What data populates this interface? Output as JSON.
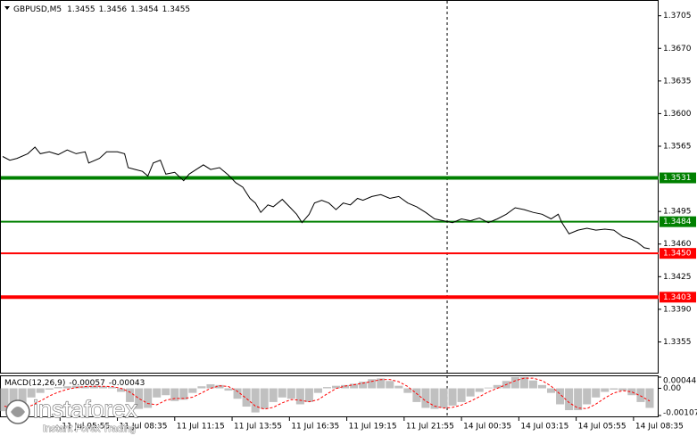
{
  "chart_data": [
    {
      "type": "line",
      "title": "GBPUSD,M5",
      "ohlc": [
        1.3455,
        1.3456,
        1.3454,
        1.3455
      ],
      "color": "#000000",
      "x": [
        0,
        4,
        8,
        14,
        18,
        21,
        26,
        31,
        36,
        41,
        46,
        48,
        54,
        58,
        64,
        68,
        70,
        74,
        78,
        81,
        84,
        88,
        91,
        96,
        101,
        104,
        108,
        112,
        116,
        121,
        126,
        130,
        134,
        138,
        141,
        144,
        148,
        151,
        156,
        160,
        164,
        167,
        171,
        174,
        178,
        182,
        186,
        190,
        194,
        198,
        201,
        206,
        211,
        216,
        221,
        226,
        231,
        236,
        241,
        246,
        251,
        256,
        261,
        266,
        271,
        276,
        281,
        286,
        291,
        296,
        301,
        306,
        310,
        312,
        316,
        321,
        326,
        331,
        336,
        341,
        346,
        351,
        354,
        358,
        361
      ],
      "values": [
        1.3554,
        1.355,
        1.3552,
        1.3557,
        1.3564,
        1.3557,
        1.3559,
        1.3556,
        1.3561,
        1.3557,
        1.3559,
        1.3547,
        1.3552,
        1.3559,
        1.3559,
        1.3557,
        1.3542,
        1.354,
        1.3538,
        1.3533,
        1.3547,
        1.355,
        1.3535,
        1.3537,
        1.3528,
        1.3535,
        1.354,
        1.3545,
        1.354,
        1.3542,
        1.3534,
        1.3526,
        1.3521,
        1.3509,
        1.3504,
        1.3494,
        1.3502,
        1.35,
        1.3508,
        1.35,
        1.3492,
        1.3483,
        1.3492,
        1.3504,
        1.3507,
        1.3504,
        1.3497,
        1.3504,
        1.3502,
        1.3509,
        1.3507,
        1.3511,
        1.3513,
        1.3509,
        1.3511,
        1.3504,
        1.35,
        1.3494,
        1.3487,
        1.3485,
        1.3483,
        1.3487,
        1.3485,
        1.3488,
        1.3483,
        1.3487,
        1.3492,
        1.3499,
        1.3497,
        1.3494,
        1.3492,
        1.3487,
        1.3492,
        1.3483,
        1.3471,
        1.3475,
        1.3477,
        1.3475,
        1.3476,
        1.3475,
        1.3468,
        1.3465,
        1.3462,
        1.3456,
        1.3455
      ],
      "xlim": [
        -1.5,
        366
      ],
      "xticks": [
        {
          "value": 32,
          "label": "11 Jul 05:55"
        },
        {
          "value": 64,
          "label": "11 Jul 08:35"
        },
        {
          "value": 96,
          "label": "11 Jul 11:15"
        },
        {
          "value": 128,
          "label": "11 Jul 13:55"
        },
        {
          "value": 160,
          "label": "11 Jul 16:35"
        },
        {
          "value": 192,
          "label": "11 Jul 19:15"
        },
        {
          "value": 224,
          "label": "11 Jul 21:55"
        },
        {
          "value": 256,
          "label": "14 Jul 00:35"
        },
        {
          "value": 288,
          "label": "14 Jul 03:15"
        },
        {
          "value": 320,
          "label": "14 Jul 05:55"
        },
        {
          "value": 352,
          "label": "14 Jul 08:35"
        }
      ],
      "ylim": [
        1.3321,
        1.372
      ],
      "yticks": [
        1.3705,
        {
          "value": 1.367,
          "label": "1.3670"
        },
        1.3635,
        {
          "value": 1.36,
          "label": "1.3600"
        },
        1.3565,
        1.3495,
        {
          "value": 1.346,
          "label": "1.3460"
        },
        1.3425,
        {
          "value": 1.339,
          "label": "1.3390"
        },
        1.3355
      ],
      "levels": [
        {
          "value": 1.3531,
          "color": "#008000",
          "style": "thick"
        },
        {
          "value": 1.3484,
          "color": "#008000",
          "style": "thin"
        },
        {
          "value": 1.345,
          "label": "1.3450",
          "color": "#ff0000",
          "style": "thin"
        },
        {
          "value": 1.3403,
          "color": "#ff0000",
          "style": "thick"
        }
      ],
      "cursor_x": 248
    },
    {
      "type": "macd",
      "title": "MACD(12,26,9)",
      "readout": [
        -0.00057,
        -0.00043
      ],
      "x": [
        1,
        6,
        11,
        16,
        21,
        26,
        31,
        36,
        41,
        46,
        51,
        56,
        61,
        66,
        71,
        76,
        81,
        86,
        91,
        96,
        101,
        106,
        111,
        116,
        121,
        126,
        131,
        136,
        141,
        146,
        151,
        156,
        161,
        166,
        171,
        176,
        181,
        186,
        191,
        196,
        201,
        206,
        211,
        216,
        221,
        226,
        231,
        236,
        241,
        246,
        251,
        256,
        261,
        266,
        271,
        276,
        281,
        286,
        291,
        296,
        301,
        306,
        311,
        316,
        321,
        326,
        331,
        336,
        341,
        346,
        351,
        356,
        361
      ],
      "histogram": [
        -0.0009,
        -0.00099,
        -0.00068,
        -0.00036,
        -0.00018,
        -5e-05,
        5e-05,
        8e-05,
        0.0001,
        8e-05,
        0.0001,
        8e-05,
        5e-05,
        -0.00014,
        -0.00054,
        -0.00081,
        -0.00077,
        -0.00036,
        -0.00027,
        -0.0005,
        -0.00045,
        -0.00018,
        8e-05,
        0.00016,
        0.00013,
        -9e-05,
        -0.00041,
        -0.00072,
        -0.00095,
        -0.00081,
        -0.00054,
        -0.00036,
        -0.00041,
        -0.00063,
        -0.00054,
        -0.00018,
        5e-05,
        0.0001,
        0.00013,
        0.00018,
        0.00026,
        0.00036,
        0.00039,
        0.00029,
        0.0001,
        -0.00018,
        -0.00054,
        -0.00077,
        -0.00081,
        -0.00077,
        -0.00068,
        -0.00054,
        -0.00032,
        -0.00014,
        3e-05,
        0.00013,
        0.00029,
        0.00044,
        0.00044,
        0.00031,
        0.00013,
        -0.00018,
        -0.00063,
        -0.00086,
        -0.00086,
        -0.00063,
        -0.00036,
        -0.00014,
        -5e-05,
        -9e-05,
        -0.00027,
        -0.00054,
        -0.00077
      ],
      "signal": [
        -0.0007,
        -0.0008,
        -0.0008,
        -0.00068,
        -0.0005,
        -0.0003,
        -0.00015,
        -4e-05,
        3e-05,
        7e-05,
        8e-05,
        8e-05,
        7e-05,
        0,
        -0.00015,
        -0.0004,
        -0.0006,
        -0.00065,
        -0.00047,
        -0.0004,
        -0.0004,
        -0.00035,
        -0.00018,
        0,
        0.0001,
        7e-05,
        -0.00012,
        -0.0004,
        -0.0007,
        -0.00082,
        -0.00075,
        -0.00057,
        -0.00044,
        -0.00047,
        -0.00053,
        -0.00045,
        -0.00022,
        -1e-05,
        9e-05,
        0.00014,
        0.0002,
        0.00027,
        0.00034,
        0.00035,
        0.00026,
        7e-05,
        -0.00021,
        -0.0005,
        -0.0007,
        -0.00078,
        -0.00075,
        -0.00066,
        -0.00051,
        -0.00033,
        -0.00014,
        0,
        0.00015,
        0.0003,
        0.0004,
        0.0004,
        0.0003,
        9e-05,
        -0.00023,
        -0.00056,
        -0.00078,
        -0.0008,
        -0.00062,
        -0.00038,
        -0.00018,
        -9e-05,
        -0.00014,
        -0.0003,
        -0.0005
      ],
      "histogram_color": "#c0c0c0",
      "signal_color": "#ff0000",
      "ylim": [
        -0.00107,
        0.00044
      ],
      "yticks": [
        0.00044,
        {
          "value": 0,
          "label": "0.00"
        },
        -0.00107
      ]
    }
  ],
  "watermark": {
    "brand": "instaforex",
    "tagline": "Instant Forex Trading"
  }
}
